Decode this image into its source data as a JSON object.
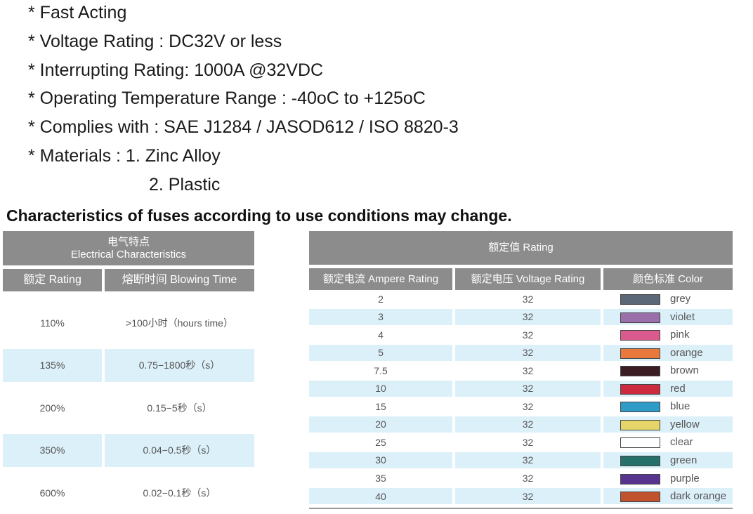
{
  "features": [
    "* Fast Acting",
    "* Voltage Rating : DC32V or less",
    "* Interrupting Rating: 1000A @32VDC",
    "* Operating Temperature Range : -40oC to +125oC",
    "* Complies with : SAE J1284 / JASOD612 / ISO 8820-3",
    "* Materials : 1. Zinc Alloy",
    "2. Plastic"
  ],
  "heading": "Characteristics of fuses according to use conditions may change.",
  "left_table": {
    "title_cn": "电气特点",
    "title_en": "Electrical Characteristics",
    "columns": [
      "额定 Rating",
      "熔断时间 Blowing Time"
    ],
    "rows": [
      [
        "110%",
        ">100小时（hours time）"
      ],
      [
        "135%",
        "0.75−1800秒（s）"
      ],
      [
        "200%",
        "0.15−5秒（s）"
      ],
      [
        "350%",
        "0.04−0.5秒（s）"
      ],
      [
        "600%",
        "0.02−0.1秒（s）"
      ]
    ]
  },
  "right_table": {
    "title": "额定值 Rating",
    "columns": [
      "额定电流 Ampere Rating",
      "额定电压 Voltage Rating",
      "颜色标准  Color"
    ],
    "rows": [
      {
        "ampere": 2,
        "voltage": 32,
        "color_name": "grey",
        "swatch": "#5c6878"
      },
      {
        "ampere": 3,
        "voltage": 32,
        "color_name": "violet",
        "swatch": "#9b6faa"
      },
      {
        "ampere": 4,
        "voltage": 32,
        "color_name": "pink",
        "swatch": "#d95a8c"
      },
      {
        "ampere": 5,
        "voltage": 32,
        "color_name": "orange",
        "swatch": "#e8783c"
      },
      {
        "ampere": 7.5,
        "voltage": 32,
        "color_name": "brown",
        "swatch": "#3a1e24"
      },
      {
        "ampere": 10,
        "voltage": 32,
        "color_name": "red",
        "swatch": "#cc2a3e"
      },
      {
        "ampere": 15,
        "voltage": 32,
        "color_name": "blue",
        "swatch": "#2f9cc8"
      },
      {
        "ampere": 20,
        "voltage": 32,
        "color_name": "yellow",
        "swatch": "#e6d66a"
      },
      {
        "ampere": 25,
        "voltage": 32,
        "color_name": "clear",
        "swatch": "#ffffff"
      },
      {
        "ampere": 30,
        "voltage": 32,
        "color_name": "green",
        "swatch": "#26706a"
      },
      {
        "ampere": 35,
        "voltage": 32,
        "color_name": "purple",
        "swatch": "#57348e"
      },
      {
        "ampere": 40,
        "voltage": 32,
        "color_name": "dark orange",
        "swatch": "#c0532e"
      }
    ]
  }
}
